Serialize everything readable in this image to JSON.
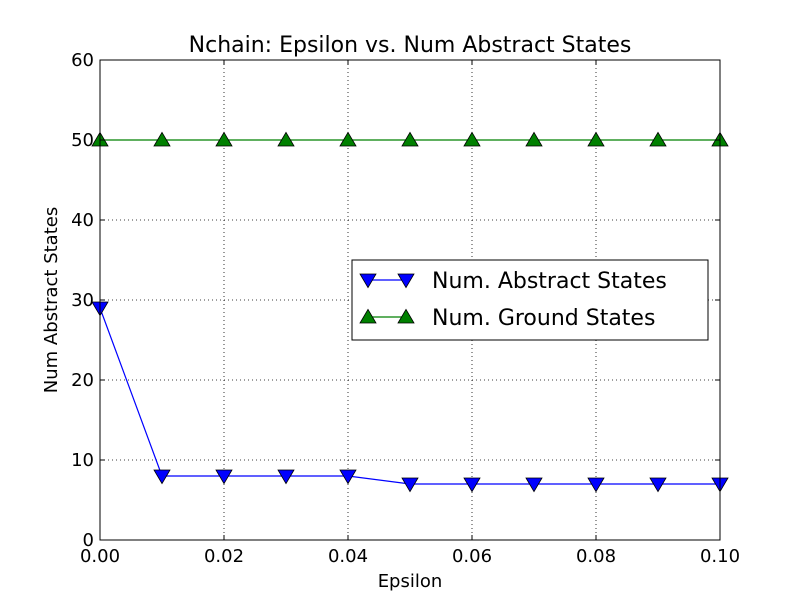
{
  "chart_data": {
    "type": "line",
    "title": "Nchain: Epsilon vs. Num Abstract States",
    "xlabel": "Epsilon",
    "ylabel": "Num Abstract States",
    "xlim": [
      0,
      0.1
    ],
    "ylim": [
      0,
      60
    ],
    "xticks": [
      "0.00",
      "0.02",
      "0.04",
      "0.06",
      "0.08",
      "0.10"
    ],
    "yticks": [
      "0",
      "10",
      "20",
      "30",
      "40",
      "50",
      "60"
    ],
    "grid": true,
    "legend_position": "center-right",
    "x": [
      0.0,
      0.01,
      0.02,
      0.03,
      0.04,
      0.05,
      0.06,
      0.07,
      0.08,
      0.09,
      0.1
    ],
    "series": [
      {
        "name": "Num. Abstract States",
        "marker": "triangle-down",
        "color": "#0000ff",
        "values": [
          29,
          8,
          8,
          8,
          8,
          7,
          7,
          7,
          7,
          7,
          7
        ]
      },
      {
        "name": "Num. Ground States",
        "marker": "triangle-up",
        "color": "#008000",
        "values": [
          50,
          50,
          50,
          50,
          50,
          50,
          50,
          50,
          50,
          50,
          50
        ]
      }
    ]
  }
}
